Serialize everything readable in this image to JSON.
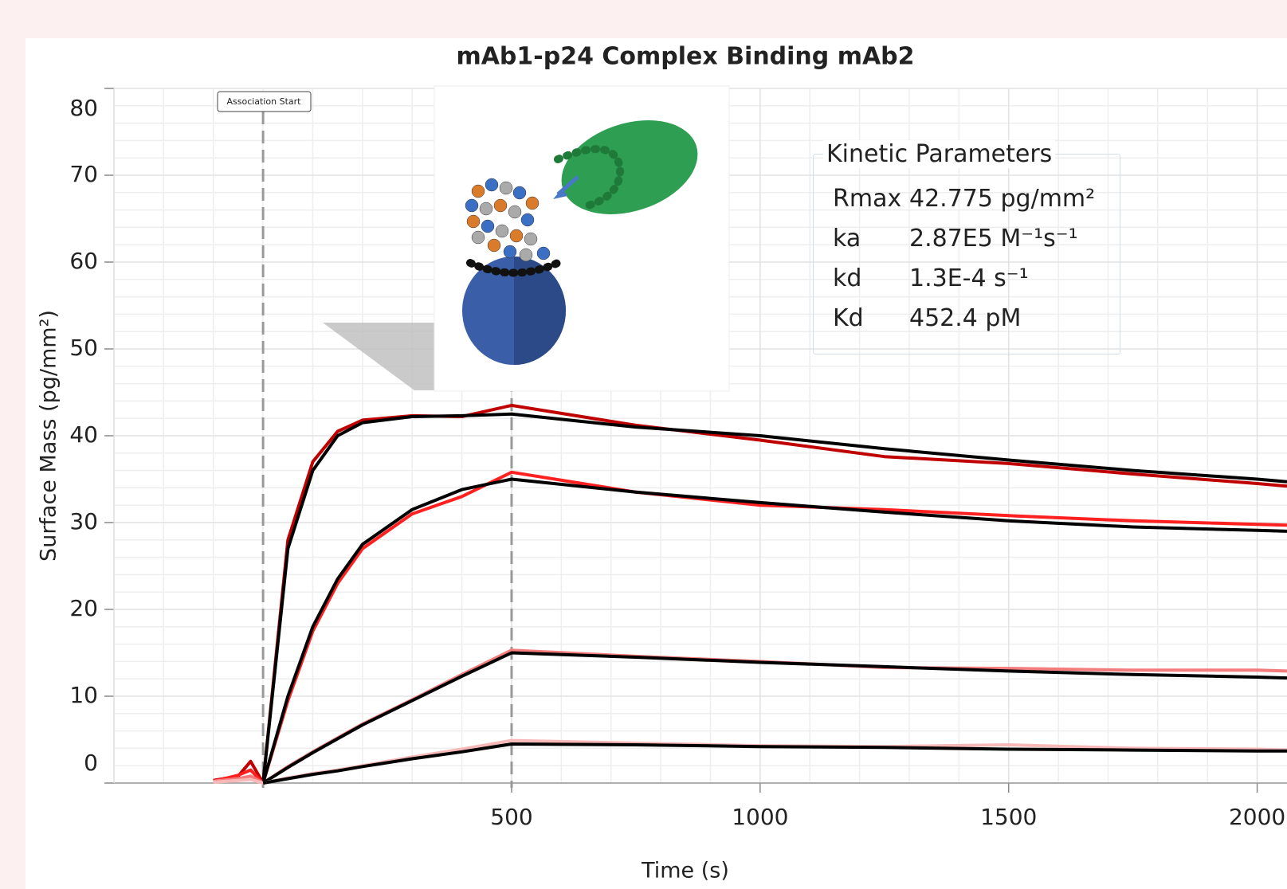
{
  "chart_data": {
    "type": "line",
    "title": "mAb1-p24 Complex Binding mAb2",
    "x_label": "Time (s)",
    "y_label": "Surface Mass (pg/mm²)",
    "x": [
      -100,
      -50,
      -25,
      0,
      50,
      100,
      150,
      200,
      300,
      400,
      500,
      750,
      1000,
      1250,
      1500,
      1750,
      2000,
      2060
    ],
    "series": [
      {
        "color": "#c00000",
        "values": [
          0.3,
          0.8,
          2.5,
          0,
          28,
          37,
          40.5,
          41.8,
          42.3,
          42.2,
          43.5,
          41.2,
          39.5,
          37.6,
          36.8,
          35.6,
          34.5,
          34.2
        ]
      },
      {
        "color": "#000000",
        "values": [
          null,
          null,
          null,
          0,
          27,
          36,
          40,
          41.5,
          42.2,
          42.3,
          42.5,
          41,
          40,
          38.5,
          37.2,
          36,
          35,
          34.7
        ]
      },
      {
        "color": "#ff2020",
        "values": [
          0.2,
          0.9,
          1.5,
          0,
          9.5,
          17.5,
          23,
          27,
          31,
          33,
          35.8,
          33.5,
          32,
          31.5,
          30.8,
          30.2,
          29.8,
          29.7
        ]
      },
      {
        "color": "#000000",
        "values": [
          null,
          null,
          null,
          0,
          10,
          18,
          23.5,
          27.5,
          31.5,
          33.8,
          35,
          33.5,
          32.3,
          31.2,
          30.2,
          29.5,
          29.1,
          29
        ]
      },
      {
        "color": "#f47c7c",
        "values": [
          0.2,
          0.5,
          0.8,
          0,
          1.9,
          3.6,
          5.2,
          6.8,
          9.6,
          12.5,
          15.3,
          14.6,
          14,
          13.3,
          13.2,
          13,
          13,
          12.9
        ]
      },
      {
        "color": "#000000",
        "values": [
          null,
          null,
          null,
          0,
          1.8,
          3.5,
          5.1,
          6.7,
          9.5,
          12.3,
          15,
          14.5,
          13.9,
          13.4,
          12.9,
          12.5,
          12.2,
          12.1
        ]
      },
      {
        "color": "#f9b8b8",
        "values": [
          0.1,
          0.3,
          0.4,
          0,
          0.6,
          1.1,
          1.5,
          2,
          3,
          3.9,
          4.9,
          4.6,
          4.3,
          4.2,
          4.4,
          4,
          3.9,
          3.8
        ]
      },
      {
        "color": "#000000",
        "values": [
          null,
          null,
          null,
          0,
          0.5,
          1,
          1.4,
          1.9,
          2.8,
          3.6,
          4.5,
          4.4,
          4.2,
          4.1,
          3.9,
          3.8,
          3.7,
          3.7
        ]
      }
    ],
    "xlim": [
      -300,
      2060
    ],
    "ylim": [
      0,
      80
    ],
    "xticks": [
      500,
      1000,
      1500,
      2000
    ],
    "yticks": [
      0,
      10,
      20,
      30,
      40,
      50,
      60,
      70,
      80
    ],
    "xgrid": [
      -200,
      -100,
      0,
      100,
      200,
      300,
      400,
      500,
      600,
      700,
      800,
      900,
      1000,
      1100,
      1200,
      1300,
      1400,
      1500,
      1600,
      1700,
      1800,
      1900,
      2000
    ],
    "ygrid": [
      2,
      4,
      6,
      8,
      12,
      14,
      16,
      18,
      22,
      24,
      26,
      28,
      32,
      34,
      36,
      38,
      42,
      44,
      46,
      48,
      52,
      54,
      56,
      58,
      62,
      64,
      66,
      68,
      72,
      74,
      76,
      78
    ],
    "grid": true,
    "vlines": [
      {
        "value": 0,
        "label": "Association Start"
      },
      {
        "value": 500
      }
    ],
    "parameter_box": {
      "title": "Kinetic Parameters",
      "rows": [
        [
          "Rmax",
          "42.775 pg/mm²"
        ],
        [
          "ka",
          "2.87E5 M⁻¹s⁻¹"
        ],
        [
          "kd",
          "1.3E-4 s⁻¹"
        ],
        [
          "Kd",
          "452.4 pM"
        ]
      ]
    }
  }
}
